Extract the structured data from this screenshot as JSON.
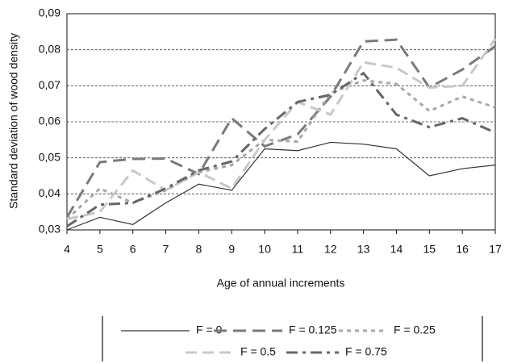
{
  "chart_data": {
    "type": "line",
    "y_label": "Standard deviation of wood density",
    "x_label": "Age of annual increments",
    "x": [
      4,
      5,
      6,
      7,
      8,
      9,
      10,
      11,
      12,
      13,
      14,
      15,
      16,
      17
    ],
    "xlim": [
      4,
      17
    ],
    "xticks": [
      4,
      5,
      6,
      7,
      8,
      9,
      10,
      11,
      12,
      13,
      14,
      15,
      16,
      17
    ],
    "ylim": [
      0.03,
      0.09
    ],
    "yticks": [
      {
        "value": 0.03,
        "label": "0,03"
      },
      {
        "value": 0.04,
        "label": "0,04"
      },
      {
        "value": 0.05,
        "label": "0,05"
      },
      {
        "value": 0.06,
        "label": "0,06"
      },
      {
        "value": 0.07,
        "label": "0,07"
      },
      {
        "value": 0.08,
        "label": "0,08"
      },
      {
        "value": 0.09,
        "label": "0,09"
      }
    ],
    "grid": true,
    "legend": "bottom",
    "series": [
      {
        "name": "F = 0",
        "color": "#333333",
        "values": [
          0.03,
          0.0335,
          0.0315,
          0.0375,
          0.0427,
          0.041,
          0.0525,
          0.052,
          0.0543,
          0.0538,
          0.0525,
          0.045,
          0.047,
          0.048
        ]
      },
      {
        "name": "F = 0.125",
        "color": "#7a7a7a",
        "values": [
          0.0335,
          0.0488,
          0.0497,
          0.0498,
          0.0455,
          0.061,
          0.0532,
          0.0565,
          0.067,
          0.0823,
          0.0828,
          0.0695,
          0.0745,
          0.081
        ]
      },
      {
        "name": "F = 0.25",
        "color": "#a8a8a8",
        "values": [
          0.033,
          0.0415,
          0.0375,
          0.041,
          0.046,
          0.048,
          0.055,
          0.0545,
          0.068,
          0.0715,
          0.0705,
          0.063,
          0.067,
          0.064
        ]
      },
      {
        "name": "F = 0.5",
        "color": "#c8c8c8",
        "values": [
          0.033,
          0.035,
          0.0465,
          0.041,
          0.046,
          0.0415,
          0.055,
          0.0655,
          0.062,
          0.0765,
          0.075,
          0.0695,
          0.07,
          0.083
        ]
      },
      {
        "name": "F = 0.75",
        "color": "#666666",
        "values": [
          0.031,
          0.037,
          0.0375,
          0.0415,
          0.0465,
          0.049,
          0.058,
          0.0655,
          0.0675,
          0.0735,
          0.062,
          0.0585,
          0.061,
          0.057
        ]
      }
    ]
  }
}
